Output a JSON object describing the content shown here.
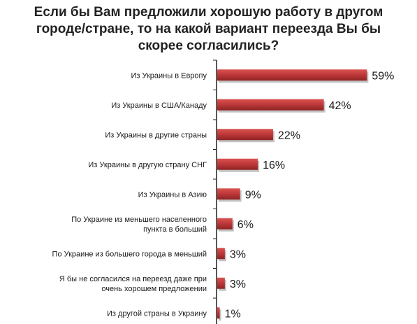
{
  "chart_data": {
    "type": "bar",
    "orientation": "horizontal",
    "title_lines": [
      "Если бы Вам предложили хорошую работу в другом",
      "городе/стране, то на какой вариант переезда Вы бы",
      "скорее согласились?"
    ],
    "categories": [
      [
        "Из Украины в Европу"
      ],
      [
        "Из Украины в США/Канаду"
      ],
      [
        "Из Украины в другие страны"
      ],
      [
        "Из Украины в другую страну СНГ"
      ],
      [
        "Из Украины в  Азию"
      ],
      [
        "По Украине из меньшего населенного",
        "пункта в больший"
      ],
      [
        "По Украине из большего города в меньший"
      ],
      [
        "Я бы не согласился на переезд даже при",
        "очень хорошем предложении"
      ],
      [
        "Из другой страны в Украину"
      ]
    ],
    "values": [
      59,
      42,
      22,
      16,
      9,
      6,
      3,
      3,
      1
    ],
    "value_labels": [
      "59%",
      "42%",
      "22%",
      "16%",
      "9%",
      "6%",
      "3%",
      "3%",
      "1%"
    ],
    "unit": "%",
    "xlim": [
      0,
      60
    ],
    "grid": false,
    "bar_color": "#c0393b",
    "bar_shadow_color": "#a9a9a9"
  }
}
